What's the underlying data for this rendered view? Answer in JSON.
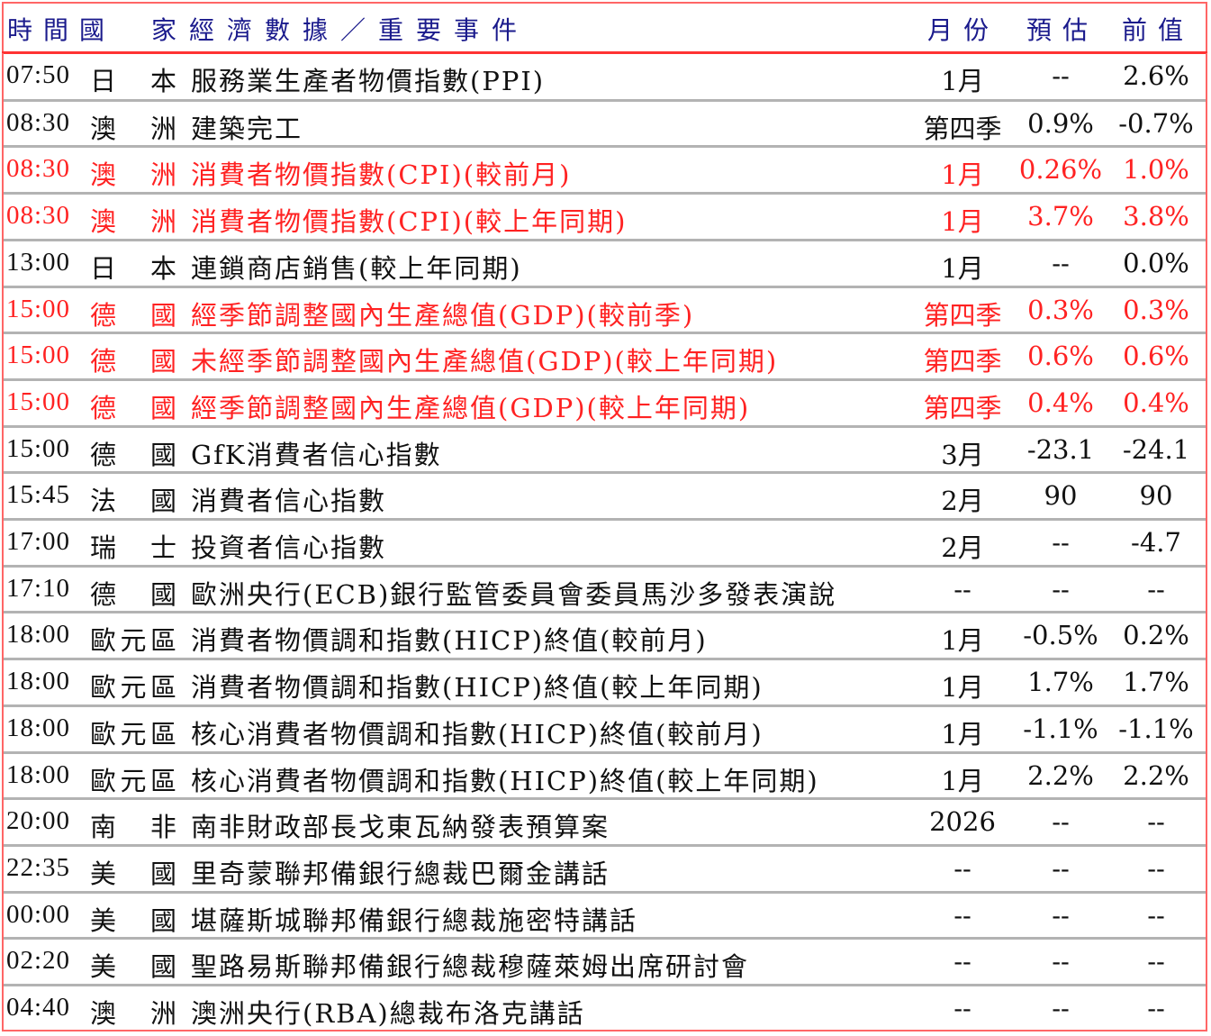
{
  "header": {
    "time_country": "時間國",
    "event": "家經濟數據／重要事件",
    "month": "月份",
    "forecast": "預估",
    "previous": "前值"
  },
  "colors": {
    "header_text": "#1a1a8c",
    "highlight": "#ff2222",
    "border": "#ff3333"
  },
  "rows": [
    {
      "time": "07:50",
      "country": "日本",
      "event": "服務業生產者物價指數(PPI)",
      "month": "1月",
      "forecast": "--",
      "previous": "2.6%",
      "highlight": false
    },
    {
      "time": "08:30",
      "country": "澳洲",
      "event": "建築完工",
      "month": "第四季",
      "forecast": "0.9%",
      "previous": "-0.7%",
      "highlight": false
    },
    {
      "time": "08:30",
      "country": "澳洲",
      "event": "消費者物價指數(CPI)(較前月)",
      "month": "1月",
      "forecast": "0.26%",
      "previous": "1.0%",
      "highlight": true
    },
    {
      "time": "08:30",
      "country": "澳洲",
      "event": "消費者物價指數(CPI)(較上年同期)",
      "month": "1月",
      "forecast": "3.7%",
      "previous": "3.8%",
      "highlight": true
    },
    {
      "time": "13:00",
      "country": "日本",
      "event": "連鎖商店銷售(較上年同期)",
      "month": "1月",
      "forecast": "--",
      "previous": "0.0%",
      "highlight": false
    },
    {
      "time": "15:00",
      "country": "德國",
      "event": "經季節調整國內生產總值(GDP)(較前季)",
      "month": "第四季",
      "forecast": "0.3%",
      "previous": "0.3%",
      "highlight": true
    },
    {
      "time": "15:00",
      "country": "德國",
      "event": "未經季節調整國內生產總值(GDP)(較上年同期)",
      "month": "第四季",
      "forecast": "0.6%",
      "previous": "0.6%",
      "highlight": true
    },
    {
      "time": "15:00",
      "country": "德國",
      "event": "經季節調整國內生產總值(GDP)(較上年同期)",
      "month": "第四季",
      "forecast": "0.4%",
      "previous": "0.4%",
      "highlight": true
    },
    {
      "time": "15:00",
      "country": "德國",
      "event": "GfK消費者信心指數",
      "month": "3月",
      "forecast": "-23.1",
      "previous": "-24.1",
      "highlight": false
    },
    {
      "time": "15:45",
      "country": "法國",
      "event": "消費者信心指數",
      "month": "2月",
      "forecast": "90",
      "previous": "90",
      "highlight": false
    },
    {
      "time": "17:00",
      "country": "瑞士",
      "event": "投資者信心指數",
      "month": "2月",
      "forecast": "--",
      "previous": "-4.7",
      "highlight": false
    },
    {
      "time": "17:10",
      "country": "德國",
      "event": "歐洲央行(ECB)銀行監管委員會委員馬沙多發表演說",
      "month": "--",
      "forecast": "--",
      "previous": "--",
      "highlight": false
    },
    {
      "time": "18:00",
      "country": "歐元區",
      "event": "消費者物價調和指數(HICP)終值(較前月)",
      "month": "1月",
      "forecast": "-0.5%",
      "previous": "0.2%",
      "highlight": false
    },
    {
      "time": "18:00",
      "country": "歐元區",
      "event": "消費者物價調和指數(HICP)終值(較上年同期)",
      "month": "1月",
      "forecast": "1.7%",
      "previous": "1.7%",
      "highlight": false
    },
    {
      "time": "18:00",
      "country": "歐元區",
      "event": "核心消費者物價調和指數(HICP)終值(較前月)",
      "month": "1月",
      "forecast": "-1.1%",
      "previous": "-1.1%",
      "highlight": false
    },
    {
      "time": "18:00",
      "country": "歐元區",
      "event": "核心消費者物價調和指數(HICP)終值(較上年同期)",
      "month": "1月",
      "forecast": "2.2%",
      "previous": "2.2%",
      "highlight": false
    },
    {
      "time": "20:00",
      "country": "南非",
      "event": "南非財政部長戈東瓦納發表預算案",
      "month": "2026",
      "forecast": "--",
      "previous": "--",
      "highlight": false
    },
    {
      "time": "22:35",
      "country": "美國",
      "event": "里奇蒙聯邦備銀行總裁巴爾金講話",
      "month": "--",
      "forecast": "--",
      "previous": "--",
      "highlight": false
    },
    {
      "time": "00:00",
      "country": "美國",
      "event": "堪薩斯城聯邦備銀行總裁施密特講話",
      "month": "--",
      "forecast": "--",
      "previous": "--",
      "highlight": false
    },
    {
      "time": "02:20",
      "country": "美國",
      "event": "聖路易斯聯邦備銀行總裁穆薩萊姆出席研討會",
      "month": "--",
      "forecast": "--",
      "previous": "--",
      "highlight": false
    },
    {
      "time": "04:40",
      "country": "澳洲",
      "event": "澳洲央行(RBA)總裁布洛克講話",
      "month": "--",
      "forecast": "--",
      "previous": "--",
      "highlight": false
    }
  ]
}
